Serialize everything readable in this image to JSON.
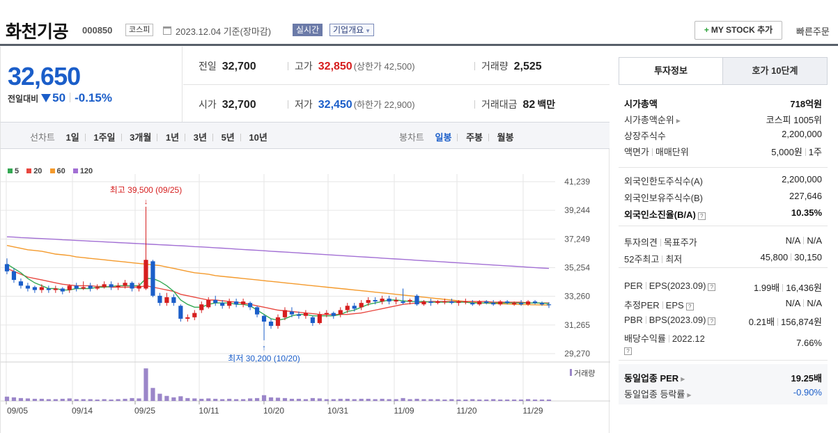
{
  "header": {
    "stock_name": "화천기공",
    "stock_code": "000850",
    "market": "코스피",
    "date_text": "2023.12.04 기준(장마감)",
    "realtime_label": "실시간",
    "overview_label": "기업개요",
    "mystock_label": "MY STOCK 추가",
    "quick_order_label": "빠른주문"
  },
  "quote": {
    "price": "32,650",
    "change_label": "전일대비",
    "change": "50",
    "change_pct": "-0.15%",
    "prev_close_label": "전일",
    "prev_close": "32,700",
    "high_label": "고가",
    "high": "32,850",
    "upper_limit": "(상한가 42,500)",
    "volume_label": "거래량",
    "volume": "2,525",
    "open_label": "시가",
    "open": "32,700",
    "low_label": "저가",
    "low": "32,450",
    "lower_limit": "(하한가 22,900)",
    "amount_label": "거래대금",
    "amount": "82",
    "amount_unit": "백만"
  },
  "period_tabs": {
    "line_label": "선차트",
    "line_items": [
      "1일",
      "1주일",
      "3개월",
      "1년",
      "3년",
      "5년",
      "10년"
    ],
    "candle_label": "봉차트",
    "candle_items": [
      "일봉",
      "주봉",
      "월봉"
    ],
    "candle_active": 0
  },
  "panel": {
    "tab_active": "투자정보",
    "tab_other": "호가 10단계",
    "market_cap_label": "시가총액",
    "market_cap": "718억원",
    "rank_label": "시가총액순위",
    "rank": "코스피 1005위",
    "shares_label": "상장주식수",
    "shares": "2,200,000",
    "par_label": "액면가",
    "unit_label": "매매단위",
    "par": "5,000원",
    "unit": "1주",
    "foreign_limit_label": "외국인한도주식수(A)",
    "foreign_limit": "2,200,000",
    "foreign_hold_label": "외국인보유주식수(B)",
    "foreign_hold": "227,646",
    "foreign_ratio_label": "외국인소진율(B/A)",
    "foreign_ratio": "10.35%",
    "opinion_label": "투자의견",
    "target_label": "목표주가",
    "opinion": "N/A",
    "target": "N/A",
    "w52_label": "52주최고",
    "w52_low_label": "최저",
    "w52_high": "45,800",
    "w52_low": "30,150",
    "per_label": "PER",
    "eps_label": "EPS(2023.09)",
    "per": "1.99배",
    "eps": "16,436원",
    "est_per_label": "추정PER",
    "est_eps_label": "EPS",
    "est_per": "N/A",
    "est_eps": "N/A",
    "pbr_label": "PBR",
    "bps_label": "BPS(2023.09)",
    "pbr": "0.21배",
    "bps": "156,874원",
    "div_label": "배당수익률",
    "div_year": "2022.12",
    "div": "7.66%",
    "sector_per_label": "동일업종 PER",
    "sector_per": "19.25배",
    "sector_chg_label": "동일업종 등락률",
    "sector_chg": "-0.90%"
  },
  "colors": {
    "up": "#d61e1e",
    "down": "#1b5ec9",
    "ma5": "#34a853",
    "ma20": "#e8473f",
    "ma60": "#f49a2c",
    "ma120": "#a26fd4",
    "volume": "#9b86c9"
  },
  "chart_data": {
    "type": "candlestick",
    "legend": [
      "5",
      "20",
      "60",
      "120"
    ],
    "y_ticks": [
      "41,239",
      "39,244",
      "37,249",
      "35,254",
      "33,260",
      "31,265",
      "29,270"
    ],
    "ylim": [
      29270,
      41239
    ],
    "x_ticks": [
      "09/05",
      "09/14",
      "09/25",
      "10/11",
      "10/20",
      "10/31",
      "11/09",
      "11/20",
      "11/29"
    ],
    "high_annotation": "최고 39,500 (09/25)",
    "low_annotation": "최저 30,200 (10/20)",
    "volume_label": "거래량",
    "candles": [
      {
        "o": 35500,
        "c": 35000,
        "h": 35900,
        "l": 34800,
        "v": 1.2
      },
      {
        "o": 35000,
        "c": 34400,
        "h": 35200,
        "l": 34200,
        "v": 1.0
      },
      {
        "o": 34300,
        "c": 34000,
        "h": 34500,
        "l": 33800,
        "v": 0.8
      },
      {
        "o": 34000,
        "c": 33800,
        "h": 34200,
        "l": 33600,
        "v": 0.7
      },
      {
        "o": 33900,
        "c": 33700,
        "h": 34000,
        "l": 33500,
        "v": 0.6
      },
      {
        "o": 33700,
        "c": 33900,
        "h": 34100,
        "l": 33500,
        "v": 0.6
      },
      {
        "o": 33800,
        "c": 33700,
        "h": 34000,
        "l": 33500,
        "v": 0.5
      },
      {
        "o": 33700,
        "c": 33800,
        "h": 34000,
        "l": 33500,
        "v": 0.5
      },
      {
        "o": 33800,
        "c": 33600,
        "h": 33900,
        "l": 33400,
        "v": 0.6
      },
      {
        "o": 33700,
        "c": 34000,
        "h": 34100,
        "l": 33500,
        "v": 0.7
      },
      {
        "o": 34000,
        "c": 33800,
        "h": 34200,
        "l": 33600,
        "v": 0.5
      },
      {
        "o": 33800,
        "c": 33900,
        "h": 34300,
        "l": 33700,
        "v": 0.5
      },
      {
        "o": 34000,
        "c": 33800,
        "h": 34200,
        "l": 33600,
        "v": 0.5
      },
      {
        "o": 33800,
        "c": 33900,
        "h": 34100,
        "l": 33700,
        "v": 0.4
      },
      {
        "o": 33900,
        "c": 34100,
        "h": 34300,
        "l": 33800,
        "v": 0.5
      },
      {
        "o": 34100,
        "c": 33900,
        "h": 34300,
        "l": 33700,
        "v": 0.4
      },
      {
        "o": 33900,
        "c": 34000,
        "h": 34200,
        "l": 33700,
        "v": 0.5
      },
      {
        "o": 34000,
        "c": 34200,
        "h": 34400,
        "l": 33800,
        "v": 0.6
      },
      {
        "o": 34200,
        "c": 33800,
        "h": 34300,
        "l": 33600,
        "v": 0.8
      },
      {
        "o": 33800,
        "c": 34000,
        "h": 34200,
        "l": 33600,
        "v": 0.7
      },
      {
        "o": 33800,
        "c": 35800,
        "h": 39500,
        "l": 33700,
        "v": 9.0
      },
      {
        "o": 35700,
        "c": 33300,
        "h": 35800,
        "l": 33200,
        "v": 3.6
      },
      {
        "o": 33300,
        "c": 32800,
        "h": 33500,
        "l": 32600,
        "v": 2.0
      },
      {
        "o": 32800,
        "c": 33200,
        "h": 33500,
        "l": 32600,
        "v": 1.4
      },
      {
        "o": 33200,
        "c": 32800,
        "h": 33400,
        "l": 32600,
        "v": 1.0
      },
      {
        "o": 32600,
        "c": 31700,
        "h": 32700,
        "l": 31500,
        "v": 1.3
      },
      {
        "o": 31700,
        "c": 31800,
        "h": 32000,
        "l": 31500,
        "v": 0.8
      },
      {
        "o": 31800,
        "c": 32100,
        "h": 32300,
        "l": 31600,
        "v": 0.7
      },
      {
        "o": 32300,
        "c": 32700,
        "h": 32900,
        "l": 32100,
        "v": 0.6
      },
      {
        "o": 32500,
        "c": 33000,
        "h": 33200,
        "l": 32400,
        "v": 0.7
      },
      {
        "o": 33000,
        "c": 32800,
        "h": 33300,
        "l": 32600,
        "v": 0.6
      },
      {
        "o": 32800,
        "c": 32600,
        "h": 33000,
        "l": 32400,
        "v": 0.5
      },
      {
        "o": 32600,
        "c": 32900,
        "h": 33100,
        "l": 32400,
        "v": 0.6
      },
      {
        "o": 32900,
        "c": 32700,
        "h": 33100,
        "l": 32500,
        "v": 0.5
      },
      {
        "o": 32700,
        "c": 32900,
        "h": 33100,
        "l": 32500,
        "v": 0.5
      },
      {
        "o": 32800,
        "c": 32500,
        "h": 32900,
        "l": 32300,
        "v": 0.7
      },
      {
        "o": 32500,
        "c": 32000,
        "h": 32600,
        "l": 31800,
        "v": 0.8
      },
      {
        "o": 31900,
        "c": 31500,
        "h": 32000,
        "l": 30200,
        "v": 1.6
      },
      {
        "o": 31500,
        "c": 31200,
        "h": 31700,
        "l": 31000,
        "v": 1.0
      },
      {
        "o": 31200,
        "c": 31800,
        "h": 32000,
        "l": 31000,
        "v": 0.9
      },
      {
        "o": 31800,
        "c": 32300,
        "h": 32500,
        "l": 31600,
        "v": 0.8
      },
      {
        "o": 32200,
        "c": 32000,
        "h": 32500,
        "l": 31800,
        "v": 0.6
      },
      {
        "o": 32000,
        "c": 31900,
        "h": 32200,
        "l": 31700,
        "v": 0.6
      },
      {
        "o": 31900,
        "c": 32100,
        "h": 32300,
        "l": 31700,
        "v": 0.5
      },
      {
        "o": 31800,
        "c": 31400,
        "h": 31900,
        "l": 31200,
        "v": 0.8
      },
      {
        "o": 31400,
        "c": 32000,
        "h": 32200,
        "l": 31300,
        "v": 0.7
      },
      {
        "o": 32000,
        "c": 32100,
        "h": 32300,
        "l": 31800,
        "v": 0.5
      },
      {
        "o": 32100,
        "c": 31900,
        "h": 32200,
        "l": 31700,
        "v": 0.5
      },
      {
        "o": 32000,
        "c": 32300,
        "h": 32500,
        "l": 31800,
        "v": 0.6
      },
      {
        "o": 32300,
        "c": 32600,
        "h": 32800,
        "l": 32100,
        "v": 0.6
      },
      {
        "o": 32600,
        "c": 32400,
        "h": 32800,
        "l": 32200,
        "v": 0.5
      },
      {
        "o": 32500,
        "c": 32800,
        "h": 33000,
        "l": 32300,
        "v": 0.6
      },
      {
        "o": 32800,
        "c": 33000,
        "h": 33200,
        "l": 32600,
        "v": 0.6
      },
      {
        "o": 33000,
        "c": 32900,
        "h": 33200,
        "l": 32700,
        "v": 0.5
      },
      {
        "o": 32900,
        "c": 33100,
        "h": 33300,
        "l": 32700,
        "v": 0.6
      },
      {
        "o": 33100,
        "c": 32900,
        "h": 33300,
        "l": 32700,
        "v": 0.5
      },
      {
        "o": 32900,
        "c": 33000,
        "h": 33200,
        "l": 32700,
        "v": 0.5
      },
      {
        "o": 32900,
        "c": 32800,
        "h": 33800,
        "l": 32700,
        "v": 0.8
      },
      {
        "o": 32900,
        "c": 33000,
        "h": 33100,
        "l": 32700,
        "v": 0.5
      },
      {
        "o": 33300,
        "c": 32700,
        "h": 33400,
        "l": 32600,
        "v": 0.6
      },
      {
        "o": 32700,
        "c": 32900,
        "h": 33000,
        "l": 32600,
        "v": 0.5
      },
      {
        "o": 32900,
        "c": 32800,
        "h": 33100,
        "l": 32600,
        "v": 0.5
      },
      {
        "o": 32800,
        "c": 32900,
        "h": 33000,
        "l": 32700,
        "v": 0.5
      },
      {
        "o": 32900,
        "c": 32900,
        "h": 33100,
        "l": 32700,
        "v": 0.4
      },
      {
        "o": 32900,
        "c": 32800,
        "h": 33100,
        "l": 32700,
        "v": 0.5
      },
      {
        "o": 32800,
        "c": 32900,
        "h": 33000,
        "l": 32600,
        "v": 0.4
      },
      {
        "o": 32900,
        "c": 32900,
        "h": 33100,
        "l": 32700,
        "v": 0.4
      },
      {
        "o": 32800,
        "c": 32700,
        "h": 33000,
        "l": 32600,
        "v": 0.5
      },
      {
        "o": 32700,
        "c": 32900,
        "h": 33000,
        "l": 32600,
        "v": 0.4
      },
      {
        "o": 32900,
        "c": 32800,
        "h": 33000,
        "l": 32700,
        "v": 0.4
      },
      {
        "o": 32800,
        "c": 32700,
        "h": 33000,
        "l": 32600,
        "v": 0.5
      },
      {
        "o": 32700,
        "c": 32900,
        "h": 33000,
        "l": 32600,
        "v": 0.4
      },
      {
        "o": 32900,
        "c": 32800,
        "h": 33000,
        "l": 32700,
        "v": 0.4
      },
      {
        "o": 32700,
        "c": 32800,
        "h": 32900,
        "l": 32600,
        "v": 0.4
      },
      {
        "o": 32800,
        "c": 32700,
        "h": 33000,
        "l": 32600,
        "v": 0.4
      },
      {
        "o": 32700,
        "c": 32900,
        "h": 33000,
        "l": 32600,
        "v": 0.5
      },
      {
        "o": 32900,
        "c": 32800,
        "h": 33000,
        "l": 32700,
        "v": 0.4
      },
      {
        "o": 32800,
        "c": 32700,
        "h": 32900,
        "l": 32600,
        "v": 0.4
      },
      {
        "o": 32700,
        "c": 32650,
        "h": 32850,
        "l": 32450,
        "v": 0.4
      }
    ],
    "ma5": [
      35500,
      35200,
      34900,
      34500,
      34200,
      34000,
      33800,
      33800,
      33700,
      33700,
      33800,
      33800,
      33800,
      33900,
      33900,
      33950,
      34000,
      34000,
      34000,
      34000,
      34500,
      34500,
      34300,
      34000,
      33600,
      33000,
      32700,
      32500,
      32500,
      32700,
      32800,
      32800,
      32800,
      32700,
      32700,
      32600,
      32300,
      32000,
      31700,
      31600,
      31700,
      31900,
      32000,
      32000,
      31900,
      31900,
      31900,
      31900,
      32000,
      32200,
      32300,
      32500,
      32700,
      32800,
      32900,
      33000,
      33000,
      32950,
      32900,
      32900,
      32900,
      32850,
      32850,
      32850,
      32850,
      32850,
      32850,
      32800,
      32800,
      32800,
      32800,
      32800,
      32800,
      32800,
      32800,
      32800,
      32800,
      32800,
      32750
    ],
    "ma20": [
      35200,
      35000,
      34800,
      34600,
      34500,
      34400,
      34300,
      34200,
      34100,
      34050,
      34000,
      34000,
      34000,
      33950,
      33950,
      33900,
      33900,
      33900,
      33900,
      33900,
      34000,
      33900,
      33800,
      33700,
      33600,
      33400,
      33300,
      33200,
      33100,
      33000,
      33000,
      32950,
      32900,
      32850,
      32800,
      32700,
      32600,
      32500,
      32400,
      32300,
      32250,
      32200,
      32150,
      32100,
      32050,
      32000,
      32000,
      32000,
      32000,
      32000,
      32050,
      32100,
      32200,
      32300,
      32400,
      32500,
      32600,
      32700,
      32750,
      32800,
      32850,
      32900,
      32900,
      32900,
      32900,
      32900,
      32900,
      32900,
      32900,
      32900,
      32850,
      32850,
      32850,
      32850,
      32850,
      32800,
      32800,
      32800,
      32800
    ],
    "ma60": [
      36800,
      36700,
      36600,
      36500,
      36450,
      36400,
      36300,
      36200,
      36150,
      36100,
      36000,
      35950,
      35900,
      35850,
      35800,
      35750,
      35700,
      35650,
      35600,
      35550,
      35500,
      35450,
      35400,
      35300,
      35200,
      35100,
      35000,
      34900,
      34850,
      34800,
      34700,
      34650,
      34600,
      34550,
      34500,
      34450,
      34400,
      34350,
      34300,
      34250,
      34200,
      34150,
      34100,
      34050,
      34000,
      33950,
      33900,
      33850,
      33800,
      33750,
      33700,
      33650,
      33600,
      33550,
      33500,
      33450,
      33400,
      33350,
      33300,
      33250,
      33200,
      33150,
      33100,
      33050,
      33000,
      32950,
      32900,
      32850,
      32800,
      32780,
      32760,
      32740,
      32720,
      32700,
      32690,
      32680,
      32670,
      32660,
      32650
    ],
    "ma120": [
      37400,
      37380,
      37350,
      37330,
      37300,
      37280,
      37250,
      37230,
      37200,
      37180,
      37150,
      37130,
      37100,
      37080,
      37050,
      37030,
      37000,
      36980,
      36950,
      36930,
      36900,
      36880,
      36850,
      36830,
      36800,
      36780,
      36750,
      36720,
      36700,
      36670,
      36640,
      36610,
      36580,
      36550,
      36520,
      36490,
      36460,
      36430,
      36400,
      36370,
      36340,
      36310,
      36280,
      36250,
      36220,
      36190,
      36160,
      36130,
      36100,
      36070,
      36040,
      36010,
      35980,
      35950,
      35920,
      35890,
      35860,
      35830,
      35800,
      35770,
      35740,
      35710,
      35680,
      35650,
      35620,
      35590,
      35560,
      35530,
      35500,
      35470,
      35440,
      35410,
      35380,
      35350,
      35320,
      35290,
      35260,
      35230,
      35200
    ]
  }
}
